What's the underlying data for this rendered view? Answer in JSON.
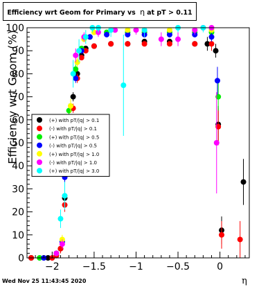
{
  "chart_data": {
    "type": "scatter",
    "title_prefix": "Efficiency wrt Geom for Primary vs",
    "title_eta": "η",
    "title_suffix": "at pT > 0.11",
    "xlabel": "η",
    "ylabel": "Efficiency wrt Geom (%)",
    "timestamp": "Wed Nov 25 11:43:45 2020",
    "xlim": [
      -2.3,
      0.35
    ],
    "ylim": [
      0,
      100
    ],
    "xticks": [
      -2,
      -1.5,
      -1,
      -0.5,
      0
    ],
    "xtick_labels": [
      "−2",
      "−1.5",
      "−1",
      "−0.5",
      "0"
    ],
    "yticks": [
      0,
      10,
      20,
      30,
      40,
      50,
      60,
      70,
      80,
      90,
      100
    ],
    "grid": false,
    "legend_position": "left-middle",
    "series": [
      {
        "name": "(+) with pT/|q| > 0.1",
        "color": "#000000",
        "points": [
          [
            -2.25,
            0
          ],
          [
            -2.05,
            0
          ],
          [
            -1.95,
            1
          ],
          [
            -1.9,
            4
          ],
          [
            -1.85,
            26
          ],
          [
            -1.8,
            55
          ],
          [
            -1.75,
            70
          ],
          [
            -1.7,
            80
          ],
          [
            -1.65,
            88
          ],
          [
            -1.6,
            91
          ],
          [
            -1.5,
            92
          ],
          [
            -1.3,
            93
          ],
          [
            -1.1,
            93
          ],
          [
            -0.9,
            94
          ],
          [
            -0.6,
            94
          ],
          [
            -0.3,
            93
          ],
          [
            -0.15,
            93
          ],
          [
            -0.05,
            90
          ],
          [
            -0.02,
            58
          ],
          [
            0.02,
            12
          ],
          [
            0.28,
            33
          ]
        ],
        "err": [
          0,
          0,
          1,
          2,
          3,
          3,
          2,
          2,
          1,
          1,
          1,
          1,
          1,
          1,
          1,
          1,
          3,
          3,
          8,
          6,
          10
        ]
      },
      {
        "name": "(-) with pT/|q| > 0.1",
        "color": "#ff0000",
        "points": [
          [
            -2.25,
            0
          ],
          [
            -2.0,
            0
          ],
          [
            -1.95,
            1
          ],
          [
            -1.9,
            4
          ],
          [
            -1.85,
            23
          ],
          [
            -1.8,
            54
          ],
          [
            -1.75,
            65
          ],
          [
            -1.7,
            78
          ],
          [
            -1.65,
            87
          ],
          [
            -1.6,
            90
          ],
          [
            -1.5,
            92
          ],
          [
            -1.3,
            93
          ],
          [
            -1.1,
            93
          ],
          [
            -0.9,
            93
          ],
          [
            -0.6,
            93
          ],
          [
            -0.3,
            93
          ],
          [
            -0.1,
            93
          ],
          [
            -0.02,
            57
          ],
          [
            0.02,
            10
          ],
          [
            0.24,
            8
          ]
        ],
        "err": [
          0,
          0,
          1,
          2,
          3,
          3,
          2,
          2,
          1,
          1,
          1,
          1,
          1,
          1,
          1,
          1,
          3,
          8,
          6,
          8
        ]
      },
      {
        "name": "(+) with pT/|q| > 0.5",
        "color": "#00ee00",
        "points": [
          [
            -2.15,
            0
          ],
          [
            -1.95,
            2
          ],
          [
            -1.88,
            7
          ],
          [
            -1.8,
            64
          ],
          [
            -1.72,
            82
          ],
          [
            -1.65,
            91
          ],
          [
            -1.55,
            96
          ],
          [
            -1.35,
            98
          ],
          [
            -1.1,
            98
          ],
          [
            -0.9,
            98
          ],
          [
            -0.6,
            98
          ],
          [
            -0.3,
            98
          ],
          [
            -0.1,
            98
          ],
          [
            -0.02,
            70
          ]
        ],
        "err": [
          0,
          1,
          2,
          3,
          2,
          1,
          1,
          1,
          1,
          1,
          1,
          1,
          2,
          6
        ]
      },
      {
        "name": "(-) with pT/|q| > 0.5",
        "color": "#0000ff",
        "points": [
          [
            -2.1,
            0
          ],
          [
            -1.95,
            2
          ],
          [
            -1.88,
            7
          ],
          [
            -1.85,
            35
          ],
          [
            -1.8,
            58
          ],
          [
            -1.72,
            78
          ],
          [
            -1.65,
            90
          ],
          [
            -1.55,
            96
          ],
          [
            -1.35,
            97
          ],
          [
            -1.1,
            97
          ],
          [
            -0.9,
            97
          ],
          [
            -0.6,
            97
          ],
          [
            -0.3,
            97
          ],
          [
            -0.1,
            96
          ],
          [
            -0.03,
            77
          ]
        ],
        "err": [
          0,
          1,
          2,
          3,
          3,
          2,
          1,
          1,
          1,
          1,
          1,
          1,
          1,
          2,
          6
        ]
      },
      {
        "name": "(+) with pT/|q| > 1.0",
        "color": "#ffff00",
        "points": [
          [
            -1.95,
            2
          ],
          [
            -1.88,
            8
          ],
          [
            -1.78,
            66
          ],
          [
            -1.7,
            85
          ],
          [
            -1.62,
            95
          ],
          [
            -1.5,
            98
          ],
          [
            -1.3,
            99
          ],
          [
            -1.1,
            99
          ],
          [
            -0.9,
            99
          ],
          [
            -0.6,
            99
          ],
          [
            -0.3,
            99
          ],
          [
            -0.1,
            99
          ]
        ],
        "err": [
          1,
          2,
          3,
          2,
          1,
          1,
          1,
          1,
          1,
          1,
          1,
          1
        ]
      },
      {
        "name": "(-) with pT/|q| > 1.0",
        "color": "#ff00ff",
        "points": [
          [
            -1.95,
            2
          ],
          [
            -1.88,
            6
          ],
          [
            -1.8,
            45
          ],
          [
            -1.72,
            88
          ],
          [
            -1.62,
            96
          ],
          [
            -1.45,
            98
          ],
          [
            -1.25,
            99
          ],
          [
            -1.0,
            99
          ],
          [
            -0.7,
            95
          ],
          [
            -0.5,
            95
          ],
          [
            -0.3,
            99
          ],
          [
            -0.2,
            100
          ],
          [
            -0.1,
            100
          ],
          [
            -0.04,
            50
          ]
        ],
        "err": [
          1,
          2,
          4,
          3,
          2,
          2,
          1,
          2,
          3,
          3,
          2,
          1,
          1,
          22
        ]
      },
      {
        "name": "(+) with pT/|q| > 3.0",
        "color": "#00ffff",
        "points": [
          [
            -1.9,
            17
          ],
          [
            -1.85,
            27
          ],
          [
            -1.75,
            80
          ],
          [
            -1.68,
            90
          ],
          [
            -1.6,
            96
          ],
          [
            -1.52,
            100
          ],
          [
            -1.45,
            100
          ],
          [
            -1.3,
            99
          ],
          [
            -1.15,
            75
          ],
          [
            -0.9,
            99
          ],
          [
            -0.5,
            100
          ],
          [
            -0.2,
            100
          ]
        ],
        "err": [
          4,
          6,
          6,
          5,
          3,
          2,
          2,
          3,
          22,
          3,
          2,
          2
        ]
      }
    ]
  }
}
